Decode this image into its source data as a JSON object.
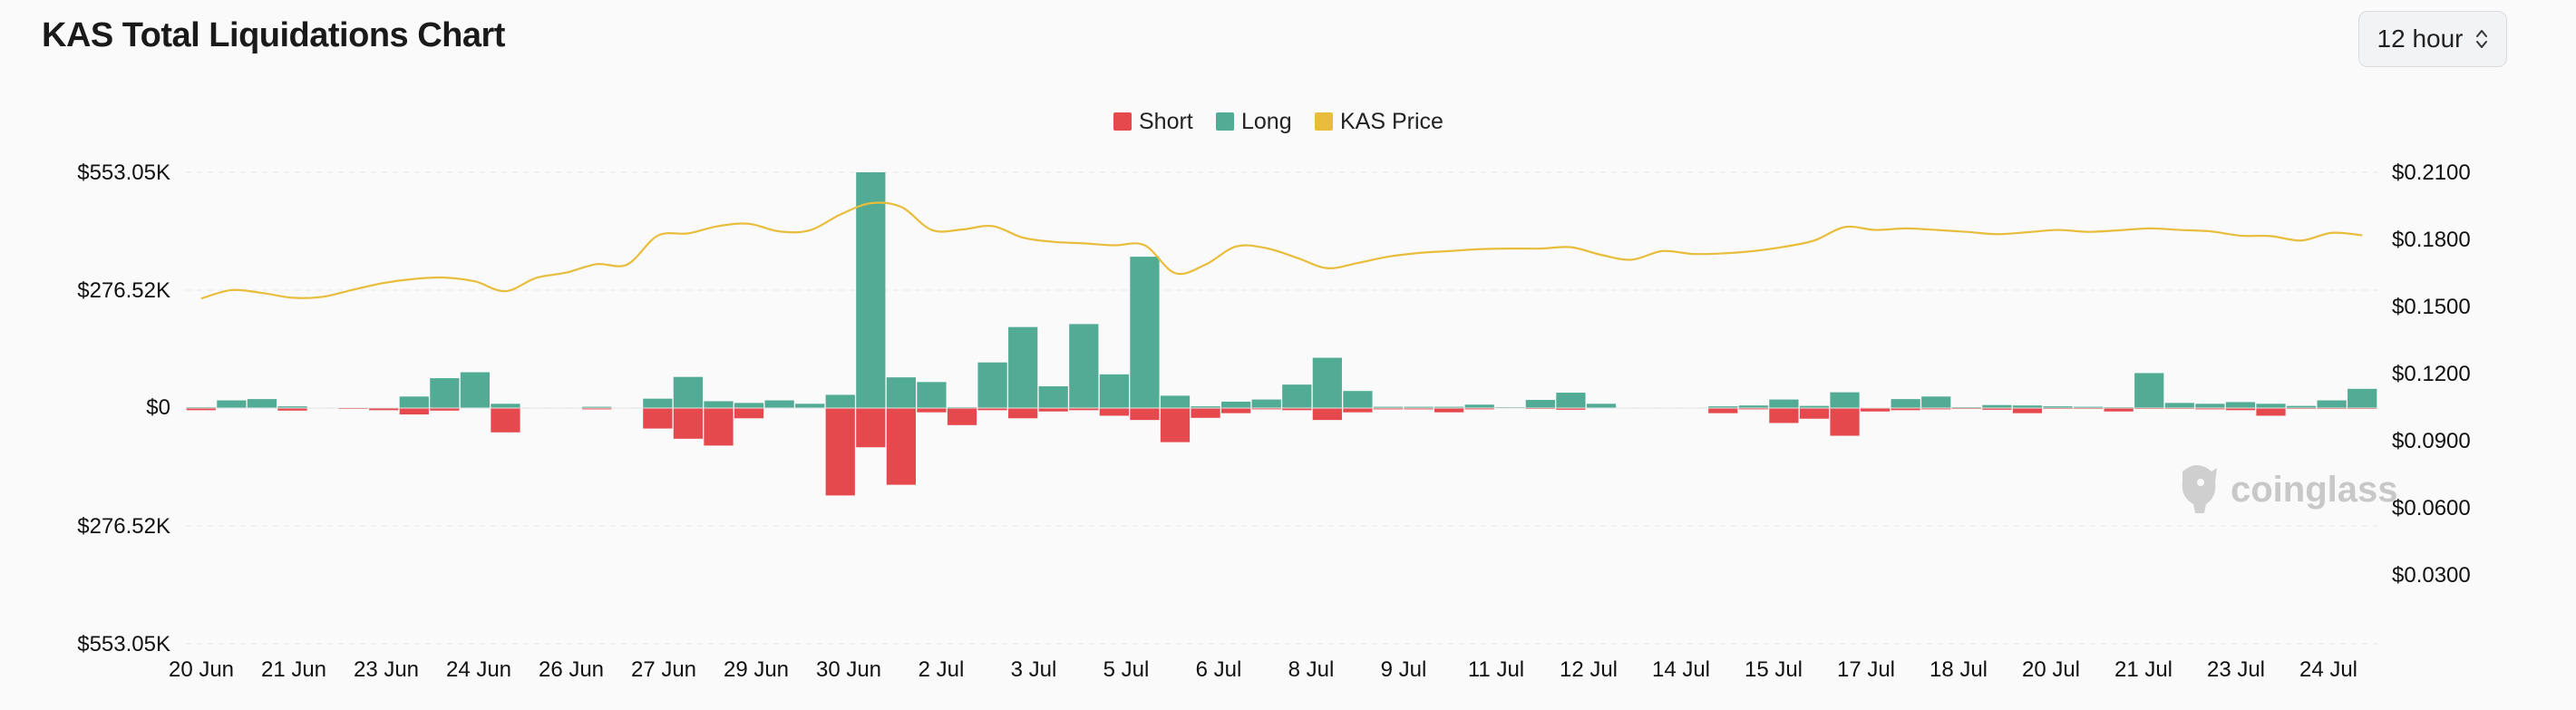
{
  "header": {
    "title": "KAS Total Liquidations Chart",
    "interval": {
      "selected": "12 hour",
      "icon": "chevron-up-down-icon"
    }
  },
  "watermark": {
    "text": "coinglass",
    "icon": "coinglass-logo-icon"
  },
  "colors": {
    "short": "#e5484d",
    "long": "#52ab94",
    "price": "#e8bd3c",
    "grid": "#ececec"
  },
  "chart_data": {
    "type": "bar",
    "title": "KAS Total Liquidations Chart",
    "legend": {
      "position": "top-center",
      "items": [
        {
          "name": "Short",
          "color": "#e5484d"
        },
        {
          "name": "Long",
          "color": "#52ab94"
        },
        {
          "name": "KAS Price",
          "color": "#e8bd3c"
        }
      ]
    },
    "x_tick_labels": [
      "20 Jun",
      "21 Jun",
      "23 Jun",
      "24 Jun",
      "26 Jun",
      "27 Jun",
      "29 Jun",
      "30 Jun",
      "2 Jul",
      "3 Jul",
      "5 Jul",
      "6 Jul",
      "8 Jul",
      "9 Jul",
      "11 Jul",
      "12 Jul",
      "14 Jul",
      "15 Jul",
      "17 Jul",
      "18 Jul",
      "20 Jul",
      "21 Jul",
      "23 Jul",
      "24 Jul"
    ],
    "left_axis": {
      "min": -553050,
      "max": 553050,
      "tick_values": [
        553050,
        276520,
        0,
        -276520,
        -553050
      ],
      "tick_labels": [
        "$553.05K",
        "$276.52K",
        "$0",
        "$276.52K",
        "$553.05K"
      ]
    },
    "right_axis": {
      "min": 0.0,
      "max": 0.21,
      "tick_values": [
        0.21,
        0.18,
        0.15,
        0.12,
        0.09,
        0.06,
        0.03
      ],
      "tick_labels": [
        "$0.2100",
        "$0.1800",
        "$0.1500",
        "$0.1200",
        "$0.0900",
        "$0.0600",
        "$0.0300"
      ]
    },
    "grid": true,
    "series": [
      {
        "name": "Long",
        "values": [
          2000,
          18000,
          21000,
          4000,
          0,
          0,
          0,
          27000,
          70000,
          84000,
          10000,
          0,
          0,
          3000,
          0,
          22000,
          73000,
          16000,
          12000,
          18000,
          10000,
          31000,
          553050,
          72000,
          61000,
          2000,
          107000,
          190000,
          51000,
          197000,
          79000,
          355000,
          29000,
          4000,
          15000,
          20000,
          55000,
          118000,
          40000,
          3000,
          3000,
          3000,
          8000,
          2000,
          19000,
          36000,
          10000,
          0,
          0,
          0,
          4000,
          6000,
          20000,
          5000,
          37000,
          0,
          21000,
          27000,
          2000,
          7000,
          6000,
          4000,
          3000,
          2000,
          82000,
          12000,
          10000,
          14000,
          10000,
          5000,
          18000,
          45000
        ]
      },
      {
        "name": "Short",
        "values": [
          -5000,
          0,
          0,
          -6000,
          0,
          -2000,
          -5000,
          -15000,
          -6000,
          0,
          -57000,
          0,
          0,
          -3000,
          0,
          -48000,
          -72000,
          -88000,
          -24000,
          0,
          0,
          -205000,
          -92000,
          -180000,
          -10000,
          -40000,
          -5000,
          -24000,
          -8000,
          -5000,
          -18000,
          -28000,
          -80000,
          -23000,
          -12000,
          -3000,
          -5000,
          -28000,
          -10000,
          -3000,
          -3000,
          -10000,
          -3000,
          0,
          -2000,
          -4000,
          0,
          0,
          0,
          0,
          -12000,
          -3000,
          -35000,
          -25000,
          -65000,
          -8000,
          -5000,
          -3000,
          -2000,
          -4000,
          -12000,
          -2000,
          -2000,
          -8000,
          -2000,
          -2000,
          -3000,
          -5000,
          -18000,
          -2000,
          -2000,
          -2000
        ]
      },
      {
        "name": "KAS Price",
        "values": [
          0.1443,
          0.1487,
          0.1472,
          0.1447,
          0.1452,
          0.1489,
          0.1524,
          0.1545,
          0.1552,
          0.1532,
          0.1481,
          0.155,
          0.1578,
          0.1622,
          0.162,
          0.177,
          0.1782,
          0.182,
          0.1832,
          0.1792,
          0.1798,
          0.188,
          0.1939,
          0.192,
          0.18,
          0.1802,
          0.182,
          0.176,
          0.1738,
          0.173,
          0.172,
          0.172,
          0.1575,
          0.162,
          0.1714,
          0.1705,
          0.1655,
          0.1601,
          0.1628,
          0.1661,
          0.168,
          0.169,
          0.17,
          0.1703,
          0.1703,
          0.171,
          0.167,
          0.1645,
          0.169,
          0.1675,
          0.1678,
          0.169,
          0.1712,
          0.1745,
          0.1815,
          0.18,
          0.1808,
          0.18,
          0.179,
          0.1778,
          0.1788,
          0.18,
          0.179,
          0.1798,
          0.1808,
          0.18,
          0.1793,
          0.177,
          0.1768,
          0.1745,
          0.1785,
          0.1772
        ]
      }
    ]
  }
}
